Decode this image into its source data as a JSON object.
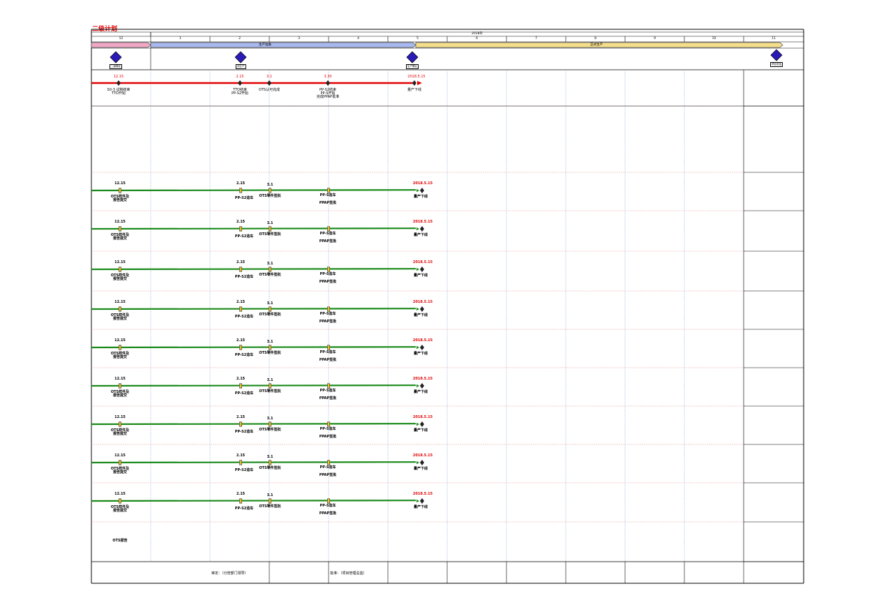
{
  "title": "二级计划",
  "year_label": "2018年",
  "months": [
    "12",
    "1",
    "2",
    "3",
    "4",
    "5",
    "6",
    "7",
    "8",
    "9",
    "10",
    "11"
  ],
  "phases": [
    {
      "label": "",
      "color": "#f2a7c5"
    },
    {
      "label": "生产准备",
      "color": "#a8b8f0"
    },
    {
      "label": "正式生产",
      "color": "#f5de8a"
    }
  ],
  "milestones": [
    {
      "label": "二级确定"
    },
    {
      "label": "试生产"
    },
    {
      "label": "生产确认"
    },
    {
      "label": "项目总结"
    }
  ],
  "top_row": {
    "dates": [
      "12.15",
      "2.15",
      "3.1",
      "3.30",
      "2018.5.15"
    ],
    "labels": [
      [
        "S0-3 试制结束",
        "TTO开始"
      ],
      [
        "TTO结束",
        "PP-S2开始"
      ],
      [
        "OTS认可完成"
      ],
      [
        "PP-S2结束",
        "PP-S开始",
        "完成PPAP批准"
      ],
      [
        "量产下线"
      ]
    ]
  },
  "part_rows": [
    {
      "d1": "12.15",
      "d2": "2.15",
      "d3": "3.1",
      "d4": "2018.5.15",
      "l1": [
        "OTS样件及",
        "报告提交"
      ],
      "l2": "PP-S2造车",
      "l3": "OTS零件签批",
      "l4": [
        "PP-S造车",
        "PPAP签批"
      ],
      "l5": "量产下线"
    },
    {
      "d1": "12.15",
      "d2": "2.15",
      "d3": "3.1",
      "d4": "2018.5.15",
      "l1": [
        "OTS样件及",
        "报告提交"
      ],
      "l2": "PP-S2造车",
      "l3": "OTS零件签批",
      "l4": [
        "PP-S造车",
        "PPAP签批"
      ],
      "l5": "量产下线"
    },
    {
      "d1": "12.15",
      "d2": "2.15",
      "d3": "3.1",
      "d4": "2018.5.15",
      "l1": [
        "OTS样件及",
        "报告提交"
      ],
      "l2": "PP-S2造车",
      "l3": "OTS零件签批",
      "l4": [
        "PP-S造车",
        "PPAP签批"
      ],
      "l5": "量产下线"
    },
    {
      "d1": "12.15",
      "d2": "2.15",
      "d3": "3.1",
      "d4": "2018.5.15",
      "l1": [
        "OTS样件及",
        "报告提交"
      ],
      "l2": "PP-S2造车",
      "l3": "OTS零件签批",
      "l4": [
        "PP-S造车",
        "PPAP签批"
      ],
      "l5": "量产下线"
    },
    {
      "d1": "12.15",
      "d2": "2.15",
      "d3": "3.1",
      "d4": "2018.5.15",
      "l1": [
        "OTS样件及",
        "报告提交"
      ],
      "l2": "PP-S2造车",
      "l3": "OTS零件签批",
      "l4": [
        "PP-S造车",
        "PPAP签批"
      ],
      "l5": "量产下线"
    },
    {
      "d1": "12.15",
      "d2": "2.15",
      "d3": "3.1",
      "d4": "2018.5.15",
      "l1": [
        "OTS样件及",
        "报告提交"
      ],
      "l2": "PP-S2造车",
      "l3": "OTS零件签批",
      "l4": [
        "PP-S造车",
        "PPAP签批"
      ],
      "l5": "量产下线"
    },
    {
      "d1": "12.15",
      "d2": "2.15",
      "d3": "3.1",
      "d4": "2018.5.15",
      "l1": [
        "OTS样件及",
        "报告提交"
      ],
      "l2": "PP-S2造车",
      "l3": "OTS零件签批",
      "l4": [
        "PP-S造车",
        "PPAP签批"
      ],
      "l5": "量产下线"
    },
    {
      "d1": "12.15",
      "d2": "2.15",
      "d3": "3.1",
      "d4": "2018.5.15",
      "l1": [
        "OTS样件及",
        "报告提交"
      ],
      "l2": "PP-S2造车",
      "l3": "OTS零件签批",
      "l4": [
        "PP-S造车",
        "PPAP签批"
      ],
      "l5": "量产下线"
    },
    {
      "d1": "12.15",
      "d2": "2.15",
      "d3": "3.1",
      "d4": "2018.5.15",
      "l1": [
        "OTS样件及",
        "报告提交"
      ],
      "l2": "PP-S2造车",
      "l3": "OTS零件签批",
      "l4": [
        "PP-S造车",
        "PPAP签批"
      ],
      "l5": "量产下线"
    }
  ],
  "report_row_label": "OTS报告",
  "signatures": {
    "review": "审定：（分管部门领导）",
    "approve": "批准：（项目管理总监）"
  },
  "colors": {
    "title": "#e00000",
    "red_line": "#e00000",
    "green_line": "#1a8a1a",
    "grid_blue": "#9fb8d8",
    "grid_red": "#e7a0a0",
    "diamond": "#2a1ab8"
  }
}
